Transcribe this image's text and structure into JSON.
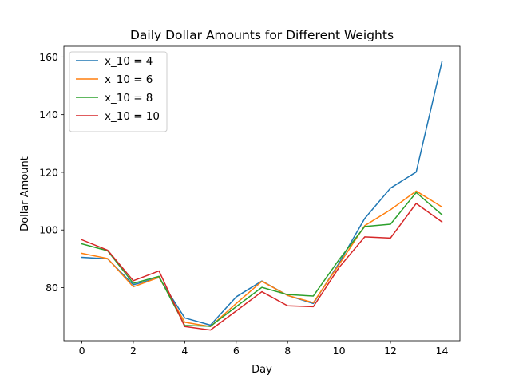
{
  "chart_data": {
    "type": "line",
    "title": "Daily Dollar Amounts for Different Weights",
    "xlabel": "Day",
    "ylabel": "Dollar Amount",
    "xlim": [
      -0.7,
      14.7
    ],
    "ylim": [
      61.6,
      163.7
    ],
    "xticks": [
      0,
      2,
      4,
      6,
      8,
      10,
      12,
      14
    ],
    "yticks": [
      80,
      100,
      120,
      140,
      160
    ],
    "grid": false,
    "legend_position": "top-left",
    "x": [
      0,
      1,
      2,
      3,
      4,
      5,
      6,
      7,
      8,
      9,
      10,
      11,
      12,
      13,
      14
    ],
    "series": [
      {
        "name": "x_10 = 4",
        "color": "#1f77b4",
        "values": [
          90.5,
          90.0,
          81.0,
          83.5,
          69.5,
          67.0,
          76.8,
          82.3,
          77.3,
          74.5,
          88.5,
          104.0,
          114.5,
          120.1,
          158.3
        ]
      },
      {
        "name": "x_10 = 6",
        "color": "#ff7f0e",
        "values": [
          91.9,
          90.1,
          80.3,
          83.6,
          68.0,
          66.5,
          74.5,
          82.2,
          77.3,
          74.8,
          88.0,
          101.5,
          107.0,
          113.5,
          108.0
        ]
      },
      {
        "name": "x_10 = 8",
        "color": "#2ca02c",
        "values": [
          95.2,
          92.8,
          81.5,
          83.9,
          66.9,
          66.6,
          73.4,
          80.1,
          77.6,
          77.1,
          89.7,
          101.2,
          102.0,
          113.0,
          105.3
        ]
      },
      {
        "name": "x_10 = 10",
        "color": "#d62728",
        "values": [
          96.6,
          93.0,
          82.4,
          85.8,
          66.5,
          65.3,
          71.9,
          78.6,
          73.7,
          73.4,
          87.0,
          97.6,
          97.2,
          109.2,
          102.8
        ]
      }
    ]
  }
}
